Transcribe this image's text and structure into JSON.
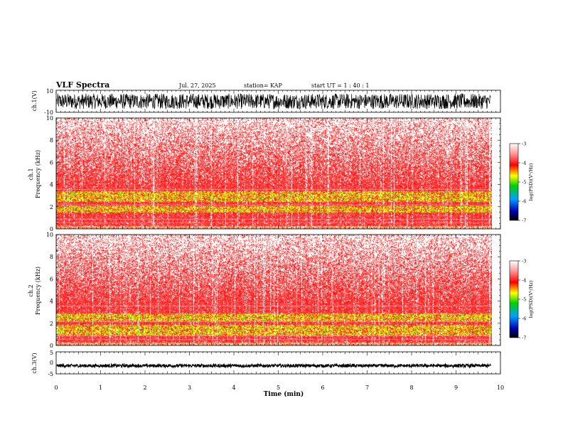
{
  "header": {
    "title": "VLF Spectra",
    "date": "Jul. 27, 2025",
    "station": "station= KAP",
    "start_ut": "start UT = 1 : 40 : 1"
  },
  "chart_data": [
    {
      "type": "line",
      "id": "ch1-waveform",
      "ylabel": "ch.1(V)",
      "ylim": [
        -10,
        10
      ],
      "yticks": [
        "10",
        "-10"
      ],
      "x_range": [
        0,
        10
      ],
      "data_extent_min": 9.8,
      "description_level": {
        "center": 0,
        "amplitude": 7
      }
    },
    {
      "type": "heatmap",
      "id": "ch1-spectrogram",
      "ylabel_top": "ch.1",
      "ylabel": "Frequency (kHz)",
      "ylim": [
        0,
        10
      ],
      "yticks": [
        "0",
        "2",
        "4",
        "6",
        "8",
        "10"
      ],
      "x_range": [
        0,
        10
      ],
      "data_extent_min": 9.8,
      "green_band_khz": [
        [
          1.5,
          2.1
        ],
        [
          2.5,
          3.4
        ]
      ],
      "colorbar": {
        "label": "log(PSD)(V²/Hz)",
        "range": [
          -7,
          -3
        ],
        "ticks": [
          "-3",
          "-4",
          "-5",
          "-6",
          "-7"
        ]
      }
    },
    {
      "type": "heatmap",
      "id": "ch2-spectrogram",
      "ylabel_top": "ch.2",
      "ylabel": "Frequency (kHz)",
      "ylim": [
        0,
        10
      ],
      "yticks": [
        "0",
        "2",
        "4",
        "6",
        "8",
        "10"
      ],
      "x_range": [
        0,
        10
      ],
      "data_extent_min": 9.8,
      "green_band_khz": [
        [
          0.9,
          1.9
        ],
        [
          2.2,
          2.9
        ]
      ],
      "colorbar": {
        "label": "log(PSD)(V²/Hz)",
        "range": [
          -7,
          -3
        ],
        "ticks": [
          "-3",
          "-4",
          "-5",
          "-6",
          "-7"
        ]
      }
    },
    {
      "type": "line",
      "id": "ch3-waveform",
      "ylabel": "ch.3(V)",
      "ylim": [
        -5,
        5
      ],
      "yticks": [
        "5",
        "0",
        "-5"
      ],
      "x_range": [
        0,
        10
      ],
      "data_extent_min": 9.8,
      "description_level": {
        "center": -1.3,
        "amplitude": 0.7
      }
    }
  ],
  "xaxis": {
    "label": "Time (min)",
    "ticks": [
      "0",
      "1",
      "2",
      "3",
      "4",
      "5",
      "6",
      "7",
      "8",
      "9",
      "10"
    ]
  }
}
